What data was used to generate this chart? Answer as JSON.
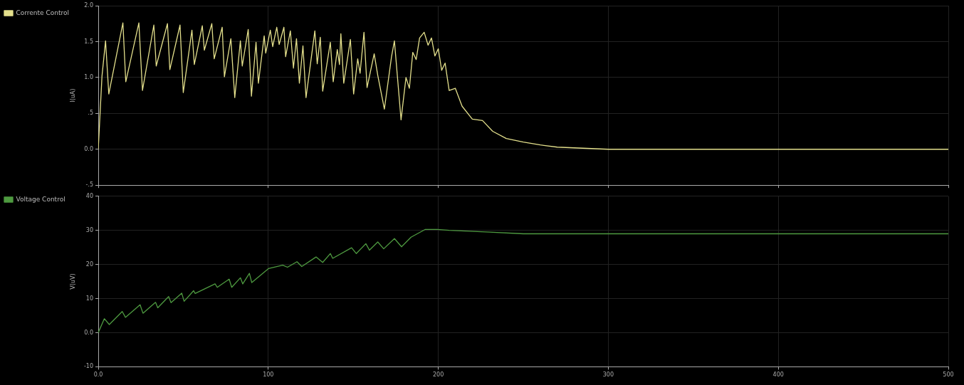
{
  "chart_data": [
    {
      "type": "line",
      "ylabel": "I(uA)",
      "xlim": [
        0,
        500
      ],
      "xticks": [
        0,
        100,
        200,
        300,
        400,
        500
      ],
      "ylim": [
        -0.5,
        2.0
      ],
      "yticks": [
        {
          "value": -0.5,
          "label": "-.5"
        },
        {
          "value": 0,
          "label": "0.0"
        },
        {
          "value": 0.5,
          "label": ".5"
        },
        {
          "value": 1,
          "label": "1.0"
        },
        {
          "value": 1.5,
          "label": "1.5"
        },
        {
          "value": 2,
          "label": "2.0"
        }
      ],
      "tick_labels": "y",
      "grid": true,
      "legend": "left",
      "marker": "none",
      "line_style": "solid",
      "x": [
        0,
        2.2,
        4.3,
        6.2,
        14.5,
        16.2,
        23.9,
        26,
        32.7,
        34.1,
        40.7,
        42.1,
        48.1,
        50,
        55.1,
        56.5,
        61.2,
        62.4,
        66.8,
        68.2,
        72.9,
        74.2,
        78,
        80.3,
        83.6,
        84.7,
        88.2,
        90.1,
        92.8,
        94.2,
        97.6,
        98.5,
        101.2,
        102.6,
        105,
        106.4,
        109.2,
        110.2,
        113,
        114.8,
        116.6,
        118.3,
        120.4,
        122.2,
        127.4,
        128.8,
        130.6,
        132,
        136.5,
        138.2,
        140.6,
        141.9,
        142.7,
        144.4,
        148.3,
        150.2,
        152.6,
        154,
        156.3,
        158.1,
        162.3,
        164.4,
        168.3,
        172.5,
        174.2,
        178.1,
        181,
        183,
        185,
        187,
        189,
        191.7,
        194,
        196,
        198,
        200,
        202,
        204,
        206.4,
        210,
        214,
        220,
        226,
        232,
        240,
        250,
        260,
        270,
        280,
        300,
        350,
        400,
        450,
        500
      ],
      "series": [
        {
          "name": "Corrente Control",
          "color": "#e4e08c",
          "values": [
            0,
            1.02,
            1.51,
            0.77,
            1.76,
            0.94,
            1.76,
            0.82,
            1.73,
            1.16,
            1.75,
            1.11,
            1.73,
            0.79,
            1.66,
            1.18,
            1.72,
            1.38,
            1.75,
            1.26,
            1.7,
            1.01,
            1.54,
            0.72,
            1.51,
            1.16,
            1.67,
            0.74,
            1.49,
            0.92,
            1.58,
            1.34,
            1.66,
            1.43,
            1.7,
            1.46,
            1.7,
            1.29,
            1.65,
            1.13,
            1.54,
            0.92,
            1.44,
            0.72,
            1.65,
            1.19,
            1.56,
            0.81,
            1.49,
            0.94,
            1.39,
            1.18,
            1.61,
            0.92,
            1.53,
            0.77,
            1.26,
            1.06,
            1.63,
            0.86,
            1.33,
            1.03,
            0.56,
            1.29,
            1.51,
            0.41,
            1.0,
            0.85,
            1.35,
            1.25,
            1.55,
            1.63,
            1.45,
            1.55,
            1.3,
            1.4,
            1.1,
            1.2,
            0.82,
            0.85,
            0.6,
            0.42,
            0.4,
            0.25,
            0.15,
            0.1,
            0.06,
            0.03,
            0.02,
            0,
            0,
            0,
            0,
            0
          ]
        }
      ]
    },
    {
      "type": "line",
      "ylabel": "V(uV)",
      "xlim": [
        0,
        500
      ],
      "xticks": [
        {
          "value": 0,
          "label": "0.0"
        },
        100,
        200,
        300,
        400,
        500
      ],
      "ylim": [
        -10,
        40
      ],
      "yticks": [
        -10,
        {
          "value": 0,
          "label": "0.0"
        },
        10,
        20,
        30,
        40
      ],
      "grid": true,
      "legend": "left",
      "marker": "none",
      "line_style": "solid",
      "x": [
        0,
        3.6,
        6.5,
        14.1,
        16,
        24.6,
        26.3,
        33.7,
        35,
        41.4,
        42.8,
        49.1,
        50.5,
        56.1,
        57,
        68.7,
        70,
        77,
        78.5,
        83.6,
        85,
        88.9,
        90.3,
        100.1,
        108.5,
        111.3,
        116.9,
        119.7,
        128.1,
        132,
        136.5,
        137.9,
        149,
        151.8,
        157.4,
        159.5,
        164.4,
        167.9,
        174.2,
        178.4,
        184,
        192.4,
        199.4,
        206.4,
        230,
        250,
        300,
        400,
        500
      ],
      "series": [
        {
          "name": "Voltage Control",
          "color": "#4e9a40",
          "values": [
            0,
            4.1,
            2.4,
            6.2,
            4.5,
            8.2,
            5.7,
            8.9,
            7.3,
            10.6,
            8.8,
            11.6,
            9.2,
            12.3,
            11.5,
            14.3,
            13.3,
            15.7,
            13.3,
            16.1,
            14.3,
            17.4,
            14.7,
            18.8,
            19.8,
            19.2,
            20.8,
            19.4,
            22.2,
            20.6,
            23.2,
            21.8,
            24.9,
            23.2,
            26.1,
            24.2,
            26.6,
            24.6,
            27.6,
            25.2,
            28,
            30.3,
            30.3,
            30,
            29.5,
            29,
            29,
            29,
            29
          ]
        }
      ]
    }
  ]
}
